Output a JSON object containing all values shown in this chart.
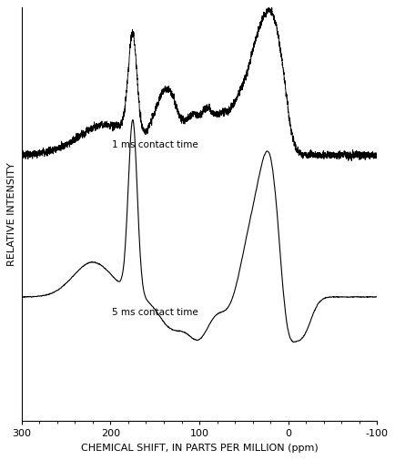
{
  "xlabel": "CHEMICAL SHIFT, IN PARTS PER MILLION (ppm)",
  "ylabel": "RELATIVE INTENSITY",
  "label_1ms": "1 ms contact time",
  "label_5ms": "5 ms contact time",
  "line_color": "#000000",
  "background_color": "#ffffff",
  "fig_width": 4.35,
  "fig_height": 5.05,
  "dpi": 100
}
